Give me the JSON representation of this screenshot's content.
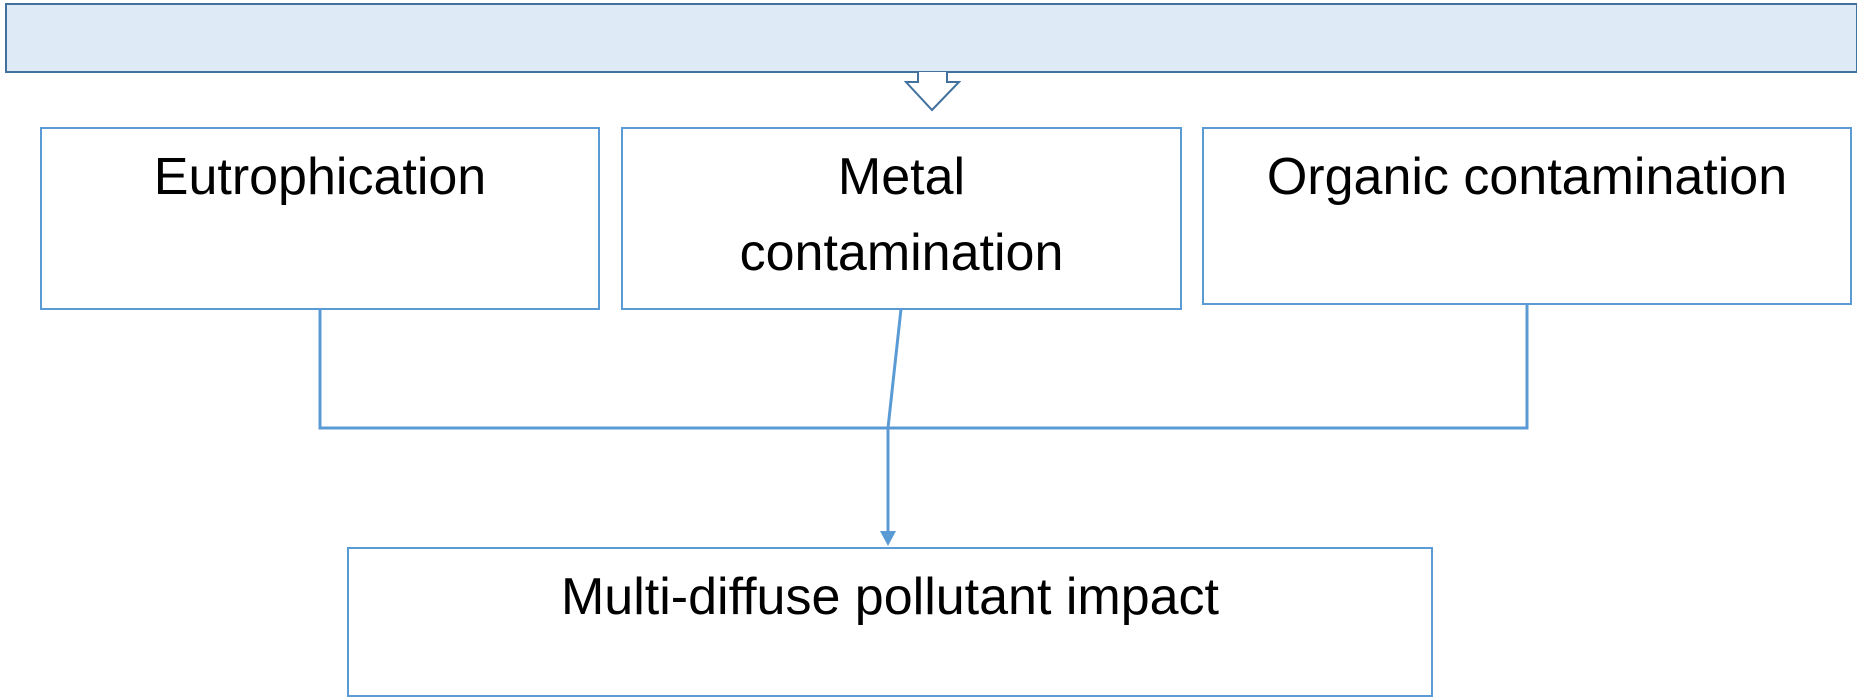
{
  "nodes": [
    {
      "label": "Eutrophication"
    },
    {
      "label": "Metal contamination"
    },
    {
      "label": "Organic contamination"
    },
    {
      "label": "Multi-diffuse pollutant impact"
    }
  ]
}
